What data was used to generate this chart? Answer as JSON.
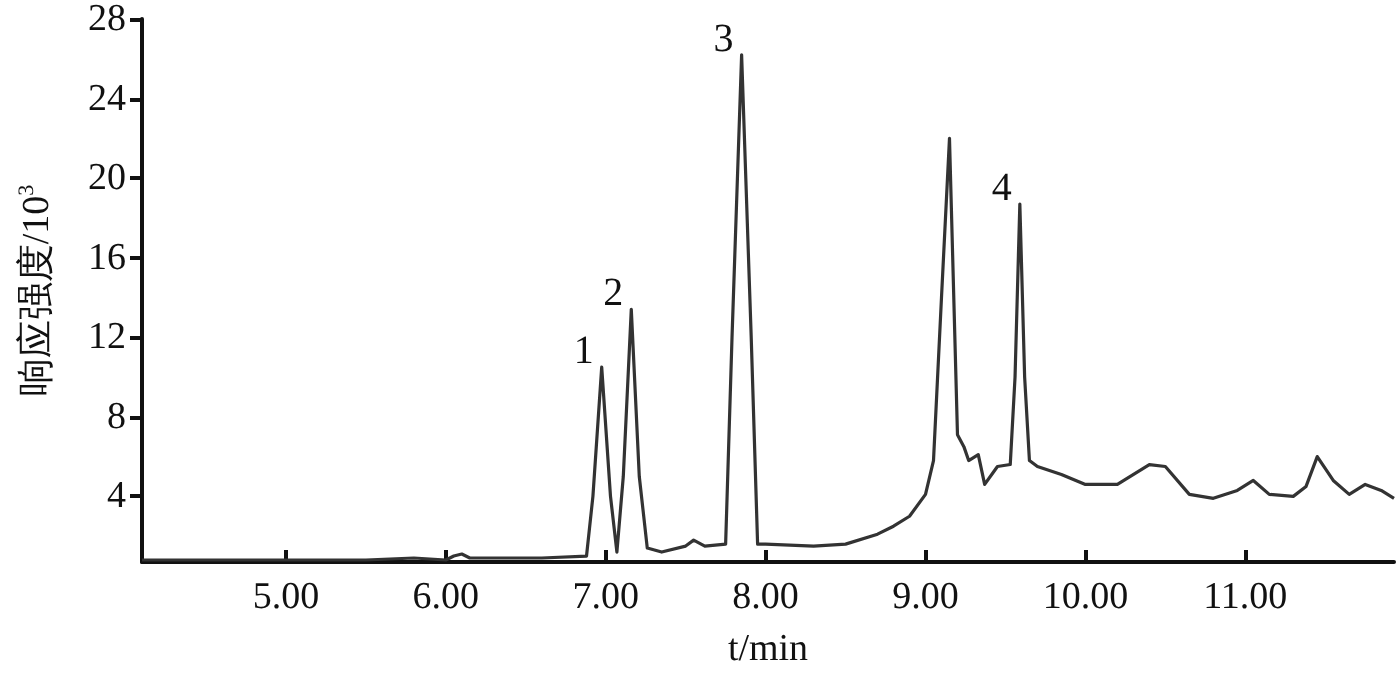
{
  "chart_data": {
    "type": "line",
    "xlabel": "t/min",
    "ylabel": "响应强度/10$^{3}$",
    "x": [
      4.1,
      4.5,
      5.0,
      5.5,
      5.8,
      6.0,
      6.05,
      6.1,
      6.15,
      6.3,
      6.6,
      6.88,
      6.92,
      6.975,
      7.03,
      7.07,
      7.11,
      7.16,
      7.21,
      7.26,
      7.35,
      7.5,
      7.55,
      7.62,
      7.75,
      7.79,
      7.85,
      7.91,
      7.95,
      8.0,
      8.3,
      8.5,
      8.7,
      8.8,
      8.9,
      9.0,
      9.05,
      9.1,
      9.15,
      9.2,
      9.24,
      9.27,
      9.33,
      9.37,
      9.45,
      9.53,
      9.56,
      9.59,
      9.62,
      9.65,
      9.7,
      9.85,
      10.0,
      10.2,
      10.4,
      10.5,
      10.65,
      10.8,
      10.95,
      11.05,
      11.15,
      11.3,
      11.38,
      11.45,
      11.55,
      11.65,
      11.75,
      11.85,
      11.93
    ],
    "values": [
      0.8,
      0.8,
      0.8,
      0.8,
      0.9,
      0.8,
      1.0,
      1.1,
      0.9,
      0.9,
      0.9,
      1.0,
      4.0,
      10.5,
      4.0,
      1.2,
      5.0,
      13.4,
      5.0,
      1.4,
      1.2,
      1.5,
      1.8,
      1.5,
      1.6,
      12.0,
      26.2,
      12.0,
      1.6,
      1.6,
      1.5,
      1.6,
      2.1,
      2.5,
      3.0,
      4.1,
      5.8,
      14.0,
      22.0,
      7.1,
      6.5,
      5.8,
      6.1,
      4.6,
      5.5,
      5.6,
      10.0,
      18.7,
      10.0,
      5.8,
      5.5,
      5.1,
      4.6,
      4.6,
      5.6,
      5.5,
      4.1,
      3.9,
      4.3,
      4.8,
      4.1,
      4.0,
      4.5,
      6.0,
      4.8,
      4.1,
      4.6,
      4.3,
      3.9
    ],
    "color": "#333333",
    "marker": "none",
    "line_style": "solid",
    "grid": false,
    "xlim": [
      4.1,
      11.93
    ],
    "xticks": [
      {
        "value": 5,
        "label": "5.00"
      },
      {
        "value": 6,
        "label": "6.00"
      },
      {
        "value": 7,
        "label": "7.00"
      },
      {
        "value": 8,
        "label": "8.00"
      },
      {
        "value": 9,
        "label": "9.00"
      },
      {
        "value": 10,
        "label": "10.00"
      },
      {
        "value": 11,
        "label": "11.00"
      }
    ],
    "ylim": [
      0.7,
      28
    ],
    "yticks": [
      4,
      8,
      12,
      16,
      20,
      24,
      28
    ],
    "annotations": [
      {
        "text": "1",
        "x": 6.975,
        "y": 10.5
      },
      {
        "text": "2",
        "x": 7.16,
        "y": 13.4
      },
      {
        "text": "3",
        "x": 7.85,
        "y": 26.2
      },
      {
        "text": "4",
        "x": 9.59,
        "y": 18.7
      }
    ]
  }
}
